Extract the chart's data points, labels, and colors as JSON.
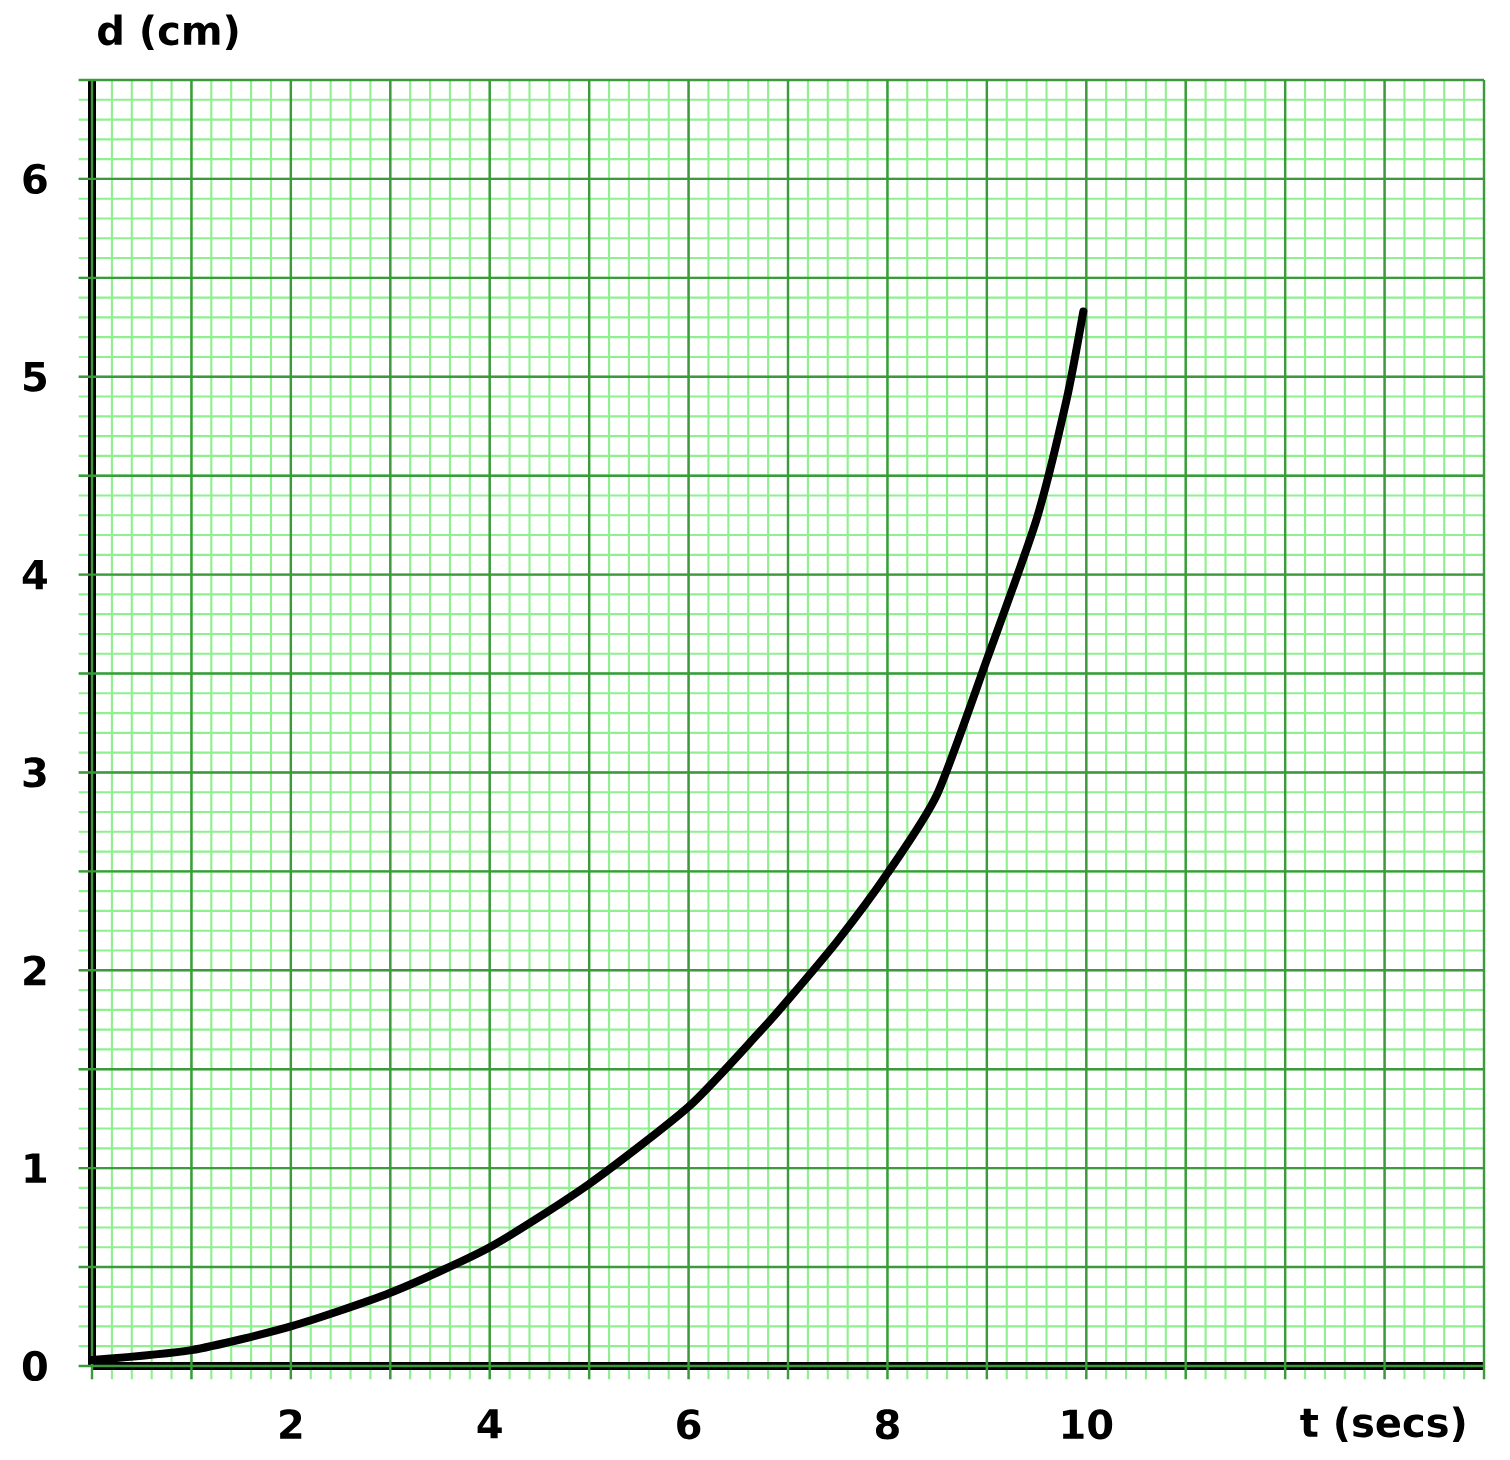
{
  "chart_data": {
    "type": "line",
    "xlabel": "t (secs)",
    "ylabel": "d (cm)",
    "x": [
      0,
      1,
      2,
      3,
      4,
      5,
      6,
      6.7,
      7,
      7.5,
      8,
      8.5,
      9,
      9.5,
      9.8,
      9.97
    ],
    "series": [
      {
        "color": "#000000",
        "values": [
          0.03,
          0.08,
          0.2,
          0.37,
          0.6,
          0.92,
          1.31,
          1.68,
          1.85,
          2.15,
          2.49,
          2.89,
          3.57,
          4.28,
          4.88,
          5.33
        ]
      }
    ],
    "xlim": [
      0,
      14
    ],
    "ylim": [
      0,
      6.5
    ],
    "xticks": [
      {
        "value": 0,
        "label": null
      },
      {
        "value": 0.2,
        "label": null
      },
      {
        "value": 0.4,
        "label": null
      },
      {
        "value": 0.6,
        "label": null
      },
      {
        "value": 0.8,
        "label": null
      },
      {
        "value": 1,
        "label": null
      },
      {
        "value": 1.2,
        "label": null
      },
      {
        "value": 1.4,
        "label": null
      },
      {
        "value": 1.6,
        "label": null
      },
      {
        "value": 1.8,
        "label": null
      },
      2,
      {
        "value": 2.2,
        "label": null
      },
      {
        "value": 2.4,
        "label": null
      },
      {
        "value": 2.6,
        "label": null
      },
      {
        "value": 2.8,
        "label": null
      },
      {
        "value": 3,
        "label": null
      },
      {
        "value": 3.2,
        "label": null
      },
      {
        "value": 3.4,
        "label": null
      },
      {
        "value": 3.6,
        "label": null
      },
      {
        "value": 3.8,
        "label": null
      },
      4,
      {
        "value": 4.2,
        "label": null
      },
      {
        "value": 4.4,
        "label": null
      },
      {
        "value": 4.6,
        "label": null
      },
      {
        "value": 4.8,
        "label": null
      },
      {
        "value": 5,
        "label": null
      },
      {
        "value": 5.2,
        "label": null
      },
      {
        "value": 5.4,
        "label": null
      },
      {
        "value": 5.6,
        "label": null
      },
      {
        "value": 5.8,
        "label": null
      },
      6,
      {
        "value": 6.2,
        "label": null
      },
      {
        "value": 6.4,
        "label": null
      },
      {
        "value": 6.6,
        "label": null
      },
      {
        "value": 6.8,
        "label": null
      },
      {
        "value": 7,
        "label": null
      },
      {
        "value": 7.2,
        "label": null
      },
      {
        "value": 7.4,
        "label": null
      },
      {
        "value": 7.6,
        "label": null
      },
      {
        "value": 7.8,
        "label": null
      },
      8,
      {
        "value": 8.2,
        "label": null
      },
      {
        "value": 8.4,
        "label": null
      },
      {
        "value": 8.6,
        "label": null
      },
      {
        "value": 8.8,
        "label": null
      },
      {
        "value": 9,
        "label": null
      },
      {
        "value": 9.2,
        "label": null
      },
      {
        "value": 9.4,
        "label": null
      },
      {
        "value": 9.6,
        "label": null
      },
      {
        "value": 9.8,
        "label": null
      },
      10,
      {
        "value": 10.2,
        "label": null
      },
      {
        "value": 10.4,
        "label": null
      },
      {
        "value": 10.6,
        "label": null
      },
      {
        "value": 10.8,
        "label": null
      },
      {
        "value": 11,
        "label": null
      },
      {
        "value": 11.2,
        "label": null
      },
      {
        "value": 11.4,
        "label": null
      },
      {
        "value": 11.6,
        "label": null
      },
      {
        "value": 11.8,
        "label": null
      },
      {
        "value": 12,
        "label": null
      },
      {
        "value": 12.2,
        "label": null
      },
      {
        "value": 12.4,
        "label": null
      },
      {
        "value": 12.6,
        "label": null
      },
      {
        "value": 12.8,
        "label": null
      },
      {
        "value": 13,
        "label": null
      },
      {
        "value": 13.2,
        "label": null
      },
      {
        "value": 13.4,
        "label": null
      },
      {
        "value": 13.6,
        "label": null
      },
      {
        "value": 13.8,
        "label": null
      },
      {
        "value": 14,
        "label": null
      }
    ],
    "yticks": [
      0,
      {
        "value": 0.1,
        "label": null
      },
      {
        "value": 0.2,
        "label": null
      },
      {
        "value": 0.3,
        "label": null
      },
      {
        "value": 0.4,
        "label": null
      },
      {
        "value": 0.5,
        "label": null
      },
      {
        "value": 0.6,
        "label": null
      },
      {
        "value": 0.7,
        "label": null
      },
      {
        "value": 0.8,
        "label": null
      },
      {
        "value": 0.9,
        "label": null
      },
      1,
      {
        "value": 1.1,
        "label": null
      },
      {
        "value": 1.2,
        "label": null
      },
      {
        "value": 1.3,
        "label": null
      },
      {
        "value": 1.4,
        "label": null
      },
      {
        "value": 1.5,
        "label": null
      },
      {
        "value": 1.6,
        "label": null
      },
      {
        "value": 1.7,
        "label": null
      },
      {
        "value": 1.8,
        "label": null
      },
      {
        "value": 1.9,
        "label": null
      },
      2,
      {
        "value": 2.1,
        "label": null
      },
      {
        "value": 2.2,
        "label": null
      },
      {
        "value": 2.3,
        "label": null
      },
      {
        "value": 2.4,
        "label": null
      },
      {
        "value": 2.5,
        "label": null
      },
      {
        "value": 2.6,
        "label": null
      },
      {
        "value": 2.7,
        "label": null
      },
      {
        "value": 2.8,
        "label": null
      },
      {
        "value": 2.9,
        "label": null
      },
      3,
      {
        "value": 3.1,
        "label": null
      },
      {
        "value": 3.2,
        "label": null
      },
      {
        "value": 3.3,
        "label": null
      },
      {
        "value": 3.4,
        "label": null
      },
      {
        "value": 3.5,
        "label": null
      },
      {
        "value": 3.6,
        "label": null
      },
      {
        "value": 3.7,
        "label": null
      },
      {
        "value": 3.8,
        "label": null
      },
      {
        "value": 3.9,
        "label": null
      },
      4,
      {
        "value": 4.1,
        "label": null
      },
      {
        "value": 4.2,
        "label": null
      },
      {
        "value": 4.3,
        "label": null
      },
      {
        "value": 4.4,
        "label": null
      },
      {
        "value": 4.5,
        "label": null
      },
      {
        "value": 4.6,
        "label": null
      },
      {
        "value": 4.7,
        "label": null
      },
      {
        "value": 4.8,
        "label": null
      },
      {
        "value": 4.9,
        "label": null
      },
      5,
      {
        "value": 5.1,
        "label": null
      },
      {
        "value": 5.2,
        "label": null
      },
      {
        "value": 5.3,
        "label": null
      },
      {
        "value": 5.4,
        "label": null
      },
      {
        "value": 5.5,
        "label": null
      },
      {
        "value": 5.6,
        "label": null
      },
      {
        "value": 5.7,
        "label": null
      },
      {
        "value": 5.8,
        "label": null
      },
      {
        "value": 5.9,
        "label": null
      },
      6,
      {
        "value": 6.1,
        "label": null
      },
      {
        "value": 6.2,
        "label": null
      },
      {
        "value": 6.3,
        "label": null
      },
      {
        "value": 6.4,
        "label": null
      },
      {
        "value": 6.5,
        "label": null
      }
    ],
    "grid": true,
    "marker": "none",
    "line_style": "solid"
  }
}
